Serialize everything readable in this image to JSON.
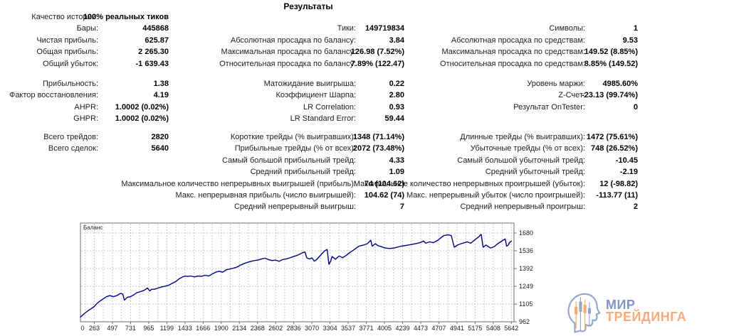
{
  "title": "Результаты",
  "stats": {
    "sections": [
      {
        "rows": [
          {
            "c1l": "Качество истории:",
            "c1v": "100% реальных тиков",
            "c2l": "",
            "c2v": "",
            "c3l": "",
            "c3v": ""
          },
          {
            "c1l": "Бары:",
            "c1v": "445868",
            "c2l": "Тики:",
            "c2v": "149719834",
            "c3l": "Символы:",
            "c3v": "1"
          },
          {
            "c1l": "Чистая прибыль:",
            "c1v": "625.87",
            "c2l": "Абсолютная просадка по балансу:",
            "c2v": "3.84",
            "c3l": "Абсолютная просадка по средствам:",
            "c3v": "9.53"
          },
          {
            "c1l": "Общая прибыль:",
            "c1v": "2 265.30",
            "c2l": "Максимальная просадка по балансу:",
            "c2v": "126.98 (7.52%)",
            "c3l": "Максимальная просадка по средствам:",
            "c3v": "149.52 (8.85%)"
          },
          {
            "c1l": "Общий убыток:",
            "c1v": "-1 639.43",
            "c2l": "Относительная просадка по балансу:",
            "c2v": "7.89% (122.47)",
            "c3l": "Относительная просадка по средствам:",
            "c3v": "8.85% (149.52)"
          }
        ]
      },
      {
        "rows": [
          {
            "c1l": "Прибыльность:",
            "c1v": "1.38",
            "c2l": "Матожидание выигрыша:",
            "c2v": "0.22",
            "c3l": "Уровень маржи:",
            "c3v": "4985.60%"
          },
          {
            "c1l": "Фактор восстановления:",
            "c1v": "4.19",
            "c2l": "Коэффициент Шарпа:",
            "c2v": "2.80",
            "c3l": "Z-Счет:",
            "c3v": "-23.13 (99.74%)"
          },
          {
            "c1l": "AHPR:",
            "c1v": "1.0002 (0.02%)",
            "c2l": "LR Correlation:",
            "c2v": "0.93",
            "c3l": "Результат OnTester:",
            "c3v": "0"
          },
          {
            "c1l": "GHPR:",
            "c1v": "1.0002 (0.02%)",
            "c2l": "LR Standard Error:",
            "c2v": "59.44",
            "c3l": "",
            "c3v": ""
          }
        ]
      },
      {
        "rows": [
          {
            "c1l": "Всего трейдов:",
            "c1v": "2820",
            "c2l": "Короткие трейды (% выигравших):",
            "c2v": "1348 (71.14%)",
            "c3l": "Длинные трейды (% выигравших):",
            "c3v": "1472 (75.61%)"
          },
          {
            "c1l": "Всего сделок:",
            "c1v": "5640",
            "c2l": "Прибыльные трейды (% от всех):",
            "c2v": "2072 (73.48%)",
            "c3l": "Убыточные трейды (% от всех):",
            "c3v": "748 (26.52%)"
          },
          {
            "c1l": "",
            "c1v": "",
            "c2l": "Самый большой прибыльный трейд:",
            "c2v": "4.33",
            "c3l": "Самый большой убыточный трейд:",
            "c3v": "-10.45"
          },
          {
            "c1l": "",
            "c1v": "",
            "c2l": "Средний прибыльный трейд:",
            "c2v": "1.09",
            "c3l": "Средний убыточный трейд:",
            "c3v": "-2.19"
          },
          {
            "c1l": "",
            "c1v": "",
            "c2l": "Максимальное количество непрерывных выигрышей (прибыль):",
            "c2v": "74 (104.62)",
            "c3l": "Максимальное количество непрерывных проигрышей (убыток):",
            "c3v": "12 (-98.82)"
          },
          {
            "c1l": "",
            "c1v": "",
            "c2l": "Макс. непрерывная прибыль (число выигрышей):",
            "c2v": "104.62 (74)",
            "c3l": "Макс. непрерывный убыток (число проигрышей):",
            "c3v": "-113.77 (11)"
          },
          {
            "c1l": "",
            "c1v": "",
            "c2l": "Средний непрерывный выигрыш:",
            "c2v": "7",
            "c3l": "Средний непрерывный проигрыш:",
            "c3v": "2"
          }
        ]
      }
    ]
  },
  "chart_data": {
    "type": "line",
    "title": "Баланс",
    "xlabel": "",
    "ylabel": "",
    "x_ticks": [
      0,
      263,
      497,
      731,
      965,
      1199,
      1433,
      1666,
      1900,
      2134,
      2368,
      2602,
      2836,
      3070,
      3304,
      3537,
      3771,
      4005,
      4239,
      4473,
      4707,
      4941,
      5175,
      5408,
      5642
    ],
    "y_ticks": [
      1680,
      1536,
      1392,
      1249,
      1105,
      962
    ],
    "xlim": [
      0,
      5642
    ],
    "ylim": [
      962,
      1760
    ],
    "grid": true,
    "legend_position": "none",
    "line_color": "#000080",
    "series": [
      {
        "name": "Баланс",
        "x": [
          0,
          50,
          110,
          170,
          230,
          290,
          340,
          385,
          430,
          477,
          523,
          555,
          575,
          615,
          655,
          693,
          739,
          785,
          831,
          877,
          908,
          932,
          970,
          1016,
          1062,
          1108,
          1154,
          1200,
          1247,
          1293,
          1339,
          1370,
          1400,
          1447,
          1493,
          1539,
          1585,
          1631,
          1678,
          1724,
          1770,
          1816,
          1862,
          1908,
          1954,
          2001,
          2047,
          2093,
          2139,
          2185,
          2231,
          2278,
          2324,
          2370,
          2416,
          2462,
          2509,
          2555,
          2601,
          2647,
          2693,
          2740,
          2786,
          2832,
          2878,
          2909,
          2940,
          2963,
          3000,
          3031,
          3062,
          3093,
          3155,
          3201,
          3231,
          3253,
          3275,
          3294,
          3340,
          3360,
          3386,
          3432,
          3478,
          3524,
          3585,
          3647,
          3708,
          3755,
          3801,
          3820,
          3862,
          3893,
          3939,
          3986,
          4047,
          4109,
          4201,
          4293,
          4386,
          4447,
          4493,
          4520,
          4571,
          4620,
          4678,
          4755,
          4817,
          4855,
          4894,
          4940,
          5003,
          5063,
          5109,
          5155,
          5217,
          5247,
          5272,
          5309,
          5340,
          5371,
          5417,
          5463,
          5509,
          5540,
          5562,
          5580,
          5602,
          5617,
          5642
        ],
        "y": [
          1000,
          1028,
          1056,
          1080,
          1118,
          1144,
          1165,
          1174,
          1165,
          1174,
          1191,
          1186,
          1137,
          1160,
          1165,
          1178,
          1197,
          1206,
          1216,
          1235,
          1212,
          1225,
          1225,
          1235,
          1244,
          1250,
          1257,
          1272,
          1287,
          1310,
          1325,
          1332,
          1329,
          1332,
          1325,
          1332,
          1329,
          1338,
          1332,
          1348,
          1363,
          1371,
          1363,
          1382,
          1389,
          1395,
          1404,
          1419,
          1432,
          1442,
          1451,
          1457,
          1461,
          1470,
          1476,
          1465,
          1457,
          1461,
          1451,
          1465,
          1470,
          1479,
          1489,
          1498,
          1511,
          1521,
          1526,
          1479,
          1470,
          1479,
          1452,
          1465,
          1508,
          1537,
          1546,
          1427,
          1450,
          1490,
          1468,
          1480,
          1494,
          1480,
          1498,
          1521,
          1546,
          1574,
          1583,
          1593,
          1621,
          1574,
          1593,
          1578,
          1570,
          1559,
          1555,
          1559,
          1574,
          1583,
          1593,
          1602,
          1615,
          1597,
          1608,
          1602,
          1621,
          1659,
          1665,
          1659,
          1565,
          1583,
          1597,
          1608,
          1597,
          1621,
          1650,
          1669,
          1565,
          1583,
          1570,
          1559,
          1570,
          1593,
          1611,
          1625,
          1632,
          1574,
          1583,
          1602,
          1615
        ]
      }
    ]
  },
  "watermark": {
    "line1": "МИР",
    "line2": "ТРЕЙДИНГА",
    "line1_color": "#8295c6",
    "line2_color": "#f8ab7c",
    "icon": "head-with-candlesticks-icon"
  },
  "colors": {
    "chart_line": "#000080",
    "grid": "#c9c9c9",
    "chart_border": "#6e6e6e",
    "text": "#1c1c1c",
    "logo_blue": "#93a5cd",
    "logo_orange": "#f6a96e"
  }
}
